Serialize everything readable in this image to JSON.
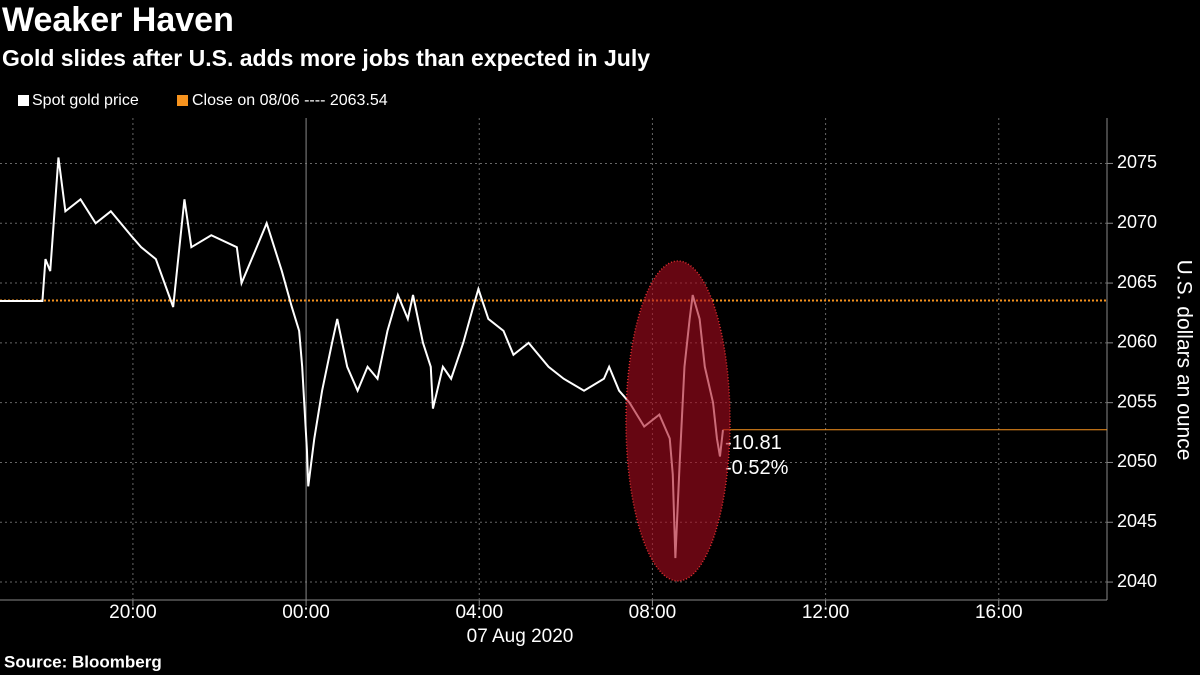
{
  "chart_data": {
    "type": "line",
    "title": "Weaker Haven",
    "subtitle": "Gold slides after U.S. adds more jobs than expected in July",
    "x": [
      -7.07,
      -6.09,
      -6.02,
      -5.91,
      -5.72,
      -5.56,
      -5.21,
      -4.86,
      -4.51,
      -4.05,
      -3.81,
      -3.47,
      -3.07,
      -2.81,
      -2.65,
      -2.19,
      -1.6,
      -1.49,
      -1.14,
      -0.91,
      -0.56,
      -0.33,
      -0.16,
      -0.09,
      0.02,
      0.05,
      0.19,
      0.37,
      0.6,
      0.72,
      0.95,
      1.19,
      1.42,
      1.65,
      1.88,
      2.12,
      2.35,
      2.47,
      2.7,
      2.88,
      2.93,
      3.16,
      3.35,
      3.63,
      3.86,
      3.98,
      4.21,
      4.56,
      4.79,
      5.14,
      5.6,
      5.95,
      6.42,
      6.88,
      7.0,
      7.23,
      7.47,
      7.81,
      8.16,
      8.4,
      8.47,
      8.53,
      8.63,
      8.74,
      8.86,
      8.93,
      9.09,
      9.21,
      9.4,
      9.49,
      9.56,
      9.63
    ],
    "series": [
      {
        "name": "Spot gold price",
        "color": "#ffffff",
        "values": [
          2063.5,
          2063.5,
          2067,
          2066,
          2075.5,
          2071,
          2072,
          2070,
          2071,
          2069,
          2068,
          2067,
          2063,
          2072,
          2068,
          2069,
          2068,
          2065,
          2068,
          2070,
          2066,
          2063,
          2061,
          2058,
          2051,
          2048,
          2052,
          2056,
          2060,
          2062,
          2058,
          2056,
          2058,
          2057,
          2061,
          2064,
          2062,
          2064,
          2060,
          2058,
          2054.5,
          2058,
          2057,
          2060,
          2063,
          2064.5,
          2062,
          2061,
          2059,
          2060,
          2058,
          2057,
          2056,
          2057,
          2058,
          2056,
          2055,
          2053,
          2054,
          2052,
          2049,
          2042,
          2050,
          2058,
          2062,
          2064,
          2062,
          2058,
          2055,
          2052,
          2050.5,
          2052.73
        ]
      }
    ],
    "close_line": {
      "label": "Close on 08/06 ----",
      "value": 2063.54,
      "color": "#f7931e"
    },
    "annotations": [
      "-10.81",
      "-0.52%"
    ],
    "xlim": [
      -7.07,
      18.5
    ],
    "xticks": [
      {
        "value": -4,
        "label": "20:00"
      },
      {
        "value": 0,
        "label": "00:00"
      },
      {
        "value": 4,
        "label": "04:00"
      },
      {
        "value": 8,
        "label": "08:00"
      },
      {
        "value": 12,
        "label": "12:00"
      },
      {
        "value": 16,
        "label": "16:00"
      }
    ],
    "xlabel": "07 Aug 2020",
    "ylim": [
      2038.5,
      2078.8
    ],
    "yticks": [
      2040,
      2045,
      2050,
      2055,
      2060,
      2065,
      2070,
      2075
    ],
    "ylabel": "U.S. dollars an ounce",
    "grid": true,
    "source": "Source: Bloomberg"
  }
}
